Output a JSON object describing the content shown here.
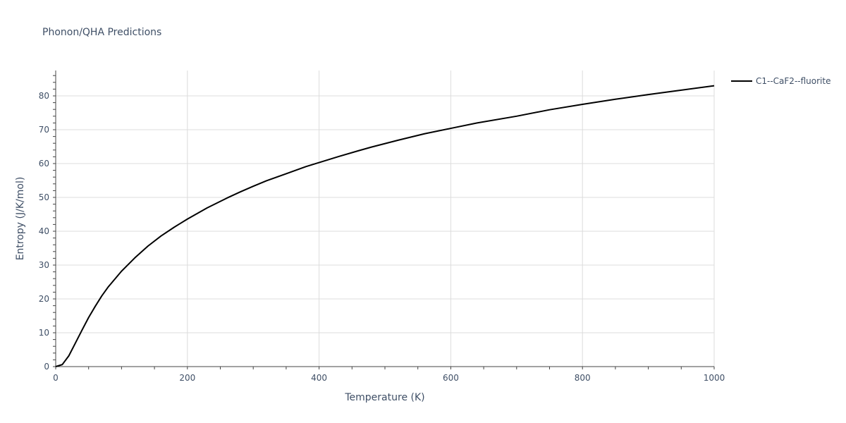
{
  "chart_data": {
    "type": "line",
    "title": "Phonon/QHA Predictions",
    "xlabel": "Temperature (K)",
    "ylabel": "Entropy (J/K/mol)",
    "xlim": [
      0,
      1000
    ],
    "ylim": [
      0,
      87.5
    ],
    "xticks": [
      0,
      200,
      400,
      600,
      800,
      1000
    ],
    "yticks": [
      0,
      10,
      20,
      30,
      40,
      50,
      60,
      70,
      80
    ],
    "grid": true,
    "legend_position": "top-right",
    "series": [
      {
        "name": "C1--CaF2--fluorite",
        "color": "#000000",
        "x": [
          0,
          10,
          20,
          30,
          40,
          50,
          60,
          70,
          80,
          100,
          120,
          140,
          160,
          180,
          200,
          230,
          260,
          280,
          300,
          320,
          350,
          380,
          400,
          430,
          460,
          480,
          520,
          560,
          600,
          640,
          700,
          750,
          800,
          850,
          900,
          950,
          1000
        ],
        "y": [
          0,
          0.6,
          3.2,
          7.0,
          10.8,
          14.5,
          17.8,
          20.9,
          23.6,
          28.2,
          32.1,
          35.6,
          38.6,
          41.2,
          43.6,
          46.9,
          49.8,
          51.6,
          53.3,
          54.9,
          57.0,
          59.1,
          60.3,
          62.1,
          63.8,
          64.9,
          66.9,
          68.8,
          70.4,
          72.0,
          74.0,
          75.9,
          77.5,
          79.0,
          80.4,
          81.7,
          83.0
        ]
      }
    ]
  }
}
